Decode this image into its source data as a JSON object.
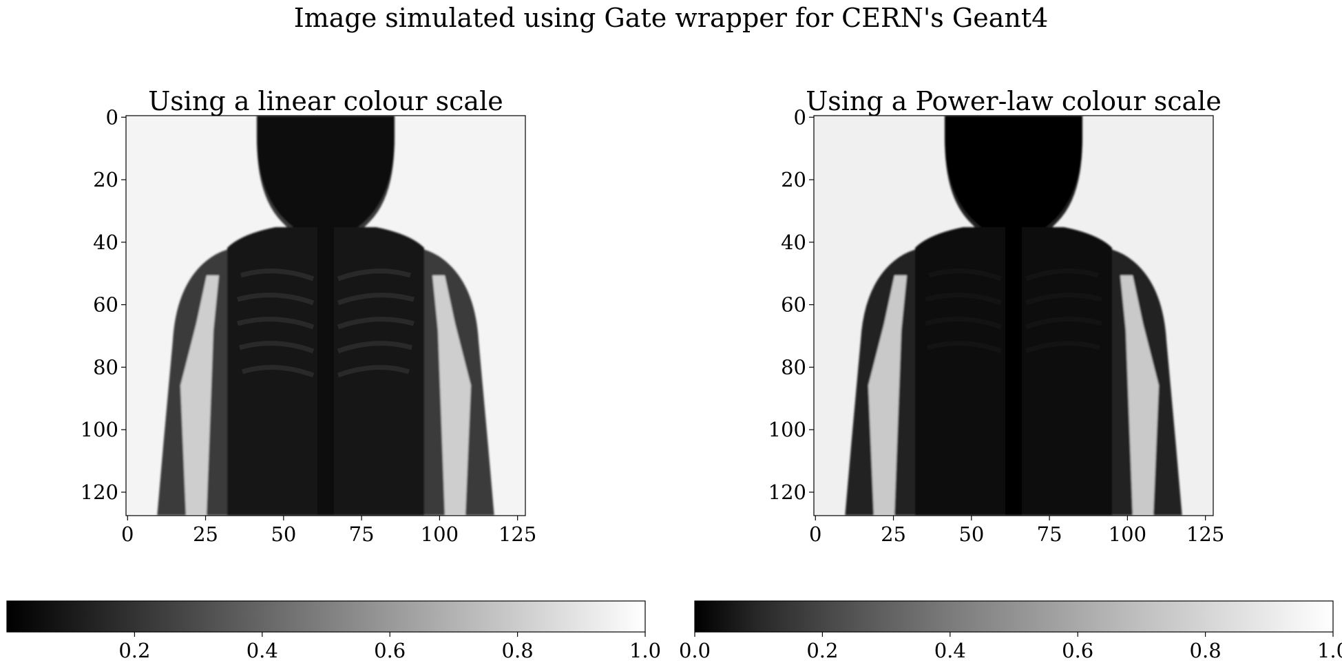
{
  "figure": {
    "suptitle": "Image simulated using Gate wrapper for CERN's Geant4"
  },
  "chart_data": [
    {
      "type": "heatmap",
      "title": "Using a linear colour scale",
      "colormap": "gray",
      "color_scale": "linear",
      "image_shape": [
        128,
        128
      ],
      "xlim": [
        0,
        127
      ],
      "ylim": [
        127,
        0
      ],
      "xticks": [
        0,
        25,
        50,
        75,
        100,
        125
      ],
      "yticks": [
        0,
        20,
        40,
        60,
        80,
        100,
        120
      ],
      "colorbar": {
        "orientation": "horizontal",
        "range": [
          0.0,
          1.0
        ],
        "ticks": [
          0.2,
          0.4,
          0.6,
          0.8,
          1.0
        ],
        "tick_labels": [
          "0.2",
          "0.4",
          "0.6",
          "0.8",
          "1.0"
        ]
      }
    },
    {
      "type": "heatmap",
      "title": "Using a Power-law colour scale",
      "colormap": "gray",
      "color_scale": "power-law",
      "image_shape": [
        128,
        128
      ],
      "xlim": [
        0,
        127
      ],
      "ylim": [
        127,
        0
      ],
      "xticks": [
        0,
        25,
        50,
        75,
        100,
        125
      ],
      "yticks": [
        0,
        20,
        40,
        60,
        80,
        100,
        120
      ],
      "colorbar": {
        "orientation": "horizontal",
        "range": [
          0.0,
          1.0
        ],
        "ticks": [
          0.0,
          0.2,
          0.4,
          0.6,
          0.8,
          1.0
        ],
        "tick_labels": [
          "0.0",
          "0.2",
          "0.4",
          "0.6",
          "0.8",
          "1.0"
        ]
      }
    }
  ]
}
